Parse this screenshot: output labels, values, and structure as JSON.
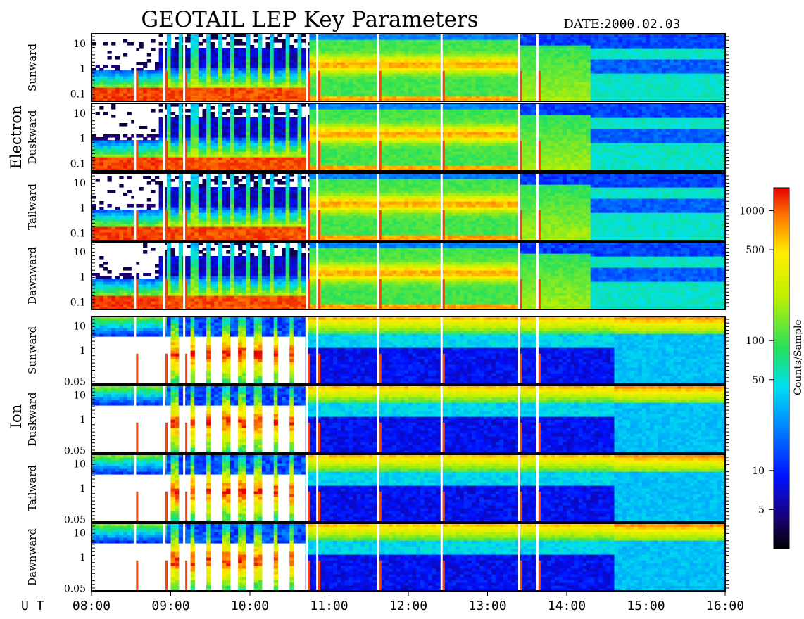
{
  "chart_data": {
    "type": "heatmap",
    "title": "GEOTAIL LEP Key Parameters",
    "date_label": "DATE:",
    "date_value": "2000.02.03",
    "time_axis": {
      "prefix": "U T",
      "ticks": [
        "08:00",
        "09:00",
        "10:00",
        "11:00",
        "12:00",
        "13:00",
        "14:00",
        "15:00",
        "16:00"
      ],
      "range_hours": [
        8,
        16
      ]
    },
    "colorbar": {
      "label": "Counts/Sample",
      "scale": "log",
      "range": [
        2.5,
        1500
      ],
      "ticks": [
        {
          "value": 5,
          "label": "5"
        },
        {
          "value": 10,
          "label": "10"
        },
        {
          "value": 50,
          "label": "50"
        },
        {
          "value": 100,
          "label": "100"
        },
        {
          "value": 500,
          "label": "500"
        },
        {
          "value": 1000,
          "label": "1000"
        }
      ]
    },
    "groups": [
      {
        "name": "Electron",
        "panels": [
          {
            "direction": "Sunward",
            "y_scale": "log",
            "y_ticks": [
              {
                "value": 10,
                "label": "10"
              },
              {
                "value": 1,
                "label": "1"
              },
              {
                "value": 0.1,
                "label": "0.1"
              }
            ]
          },
          {
            "direction": "Duskward",
            "y_scale": "log",
            "y_ticks": [
              {
                "value": 10,
                "label": "10"
              },
              {
                "value": 1,
                "label": "1"
              },
              {
                "value": 0.1,
                "label": "0.1"
              }
            ]
          },
          {
            "direction": "Tailward",
            "y_scale": "log",
            "y_ticks": [
              {
                "value": 10,
                "label": "10"
              },
              {
                "value": 1,
                "label": "1"
              },
              {
                "value": 0.1,
                "label": "0.1"
              }
            ]
          },
          {
            "direction": "Dawnward",
            "y_scale": "log",
            "y_ticks": [
              {
                "value": 10,
                "label": "10"
              },
              {
                "value": 1,
                "label": "1"
              },
              {
                "value": 0.1,
                "label": "0.1"
              }
            ]
          }
        ]
      },
      {
        "name": "Ion",
        "panels": [
          {
            "direction": "Sunward",
            "y_scale": "log",
            "y_ticks": [
              {
                "value": 10,
                "label": "10"
              },
              {
                "value": 1,
                "label": "1"
              },
              {
                "value": 0.05,
                "label": "0.05"
              }
            ]
          },
          {
            "direction": "Duskward",
            "y_scale": "log",
            "y_ticks": [
              {
                "value": 10,
                "label": "10"
              },
              {
                "value": 1,
                "label": "1"
              },
              {
                "value": 0.05,
                "label": "0.05"
              }
            ]
          },
          {
            "direction": "Tailward",
            "y_scale": "log",
            "y_ticks": [
              {
                "value": 10,
                "label": "10"
              },
              {
                "value": 1,
                "label": "1"
              },
              {
                "value": 0.05,
                "label": "0.05"
              }
            ]
          },
          {
            "direction": "Dawnward",
            "y_scale": "log",
            "y_ticks": [
              {
                "value": 10,
                "label": "10"
              },
              {
                "value": 1,
                "label": "1"
              },
              {
                "value": 0.05,
                "label": "0.05"
              }
            ]
          }
        ]
      }
    ],
    "spectrogram_model": {
      "time_start_hours": 8.0,
      "time_end_hours": 16.0,
      "energy_bins": 24,
      "time_bins": 160,
      "vertical_lines_hours": [
        8.55,
        8.92,
        9.17,
        10.72,
        10.85,
        11.62,
        12.42,
        13.4,
        13.63
      ],
      "electron_segments": [
        {
          "t0": 8.0,
          "t1": 8.85,
          "kind": "sparse-low"
        },
        {
          "t0": 8.85,
          "t1": 10.75,
          "kind": "striped-low"
        },
        {
          "t0": 10.75,
          "t1": 12.42,
          "kind": "green-band"
        },
        {
          "t0": 12.42,
          "t1": 13.4,
          "kind": "green-band"
        },
        {
          "t0": 13.4,
          "t1": 14.3,
          "kind": "green-fade"
        },
        {
          "t0": 14.3,
          "t1": 16.0,
          "kind": "double-blue"
        }
      ],
      "ion_segments": [
        {
          "t0": 8.0,
          "t1": 8.95,
          "kind": "empty-top"
        },
        {
          "t0": 8.95,
          "t1": 10.7,
          "kind": "striped-empty"
        },
        {
          "t0": 10.7,
          "t1": 12.42,
          "kind": "blue-lower"
        },
        {
          "t0": 12.42,
          "t1": 14.6,
          "kind": "blue-lower"
        },
        {
          "t0": 14.6,
          "t1": 16.0,
          "kind": "cyan-lower"
        }
      ]
    }
  }
}
